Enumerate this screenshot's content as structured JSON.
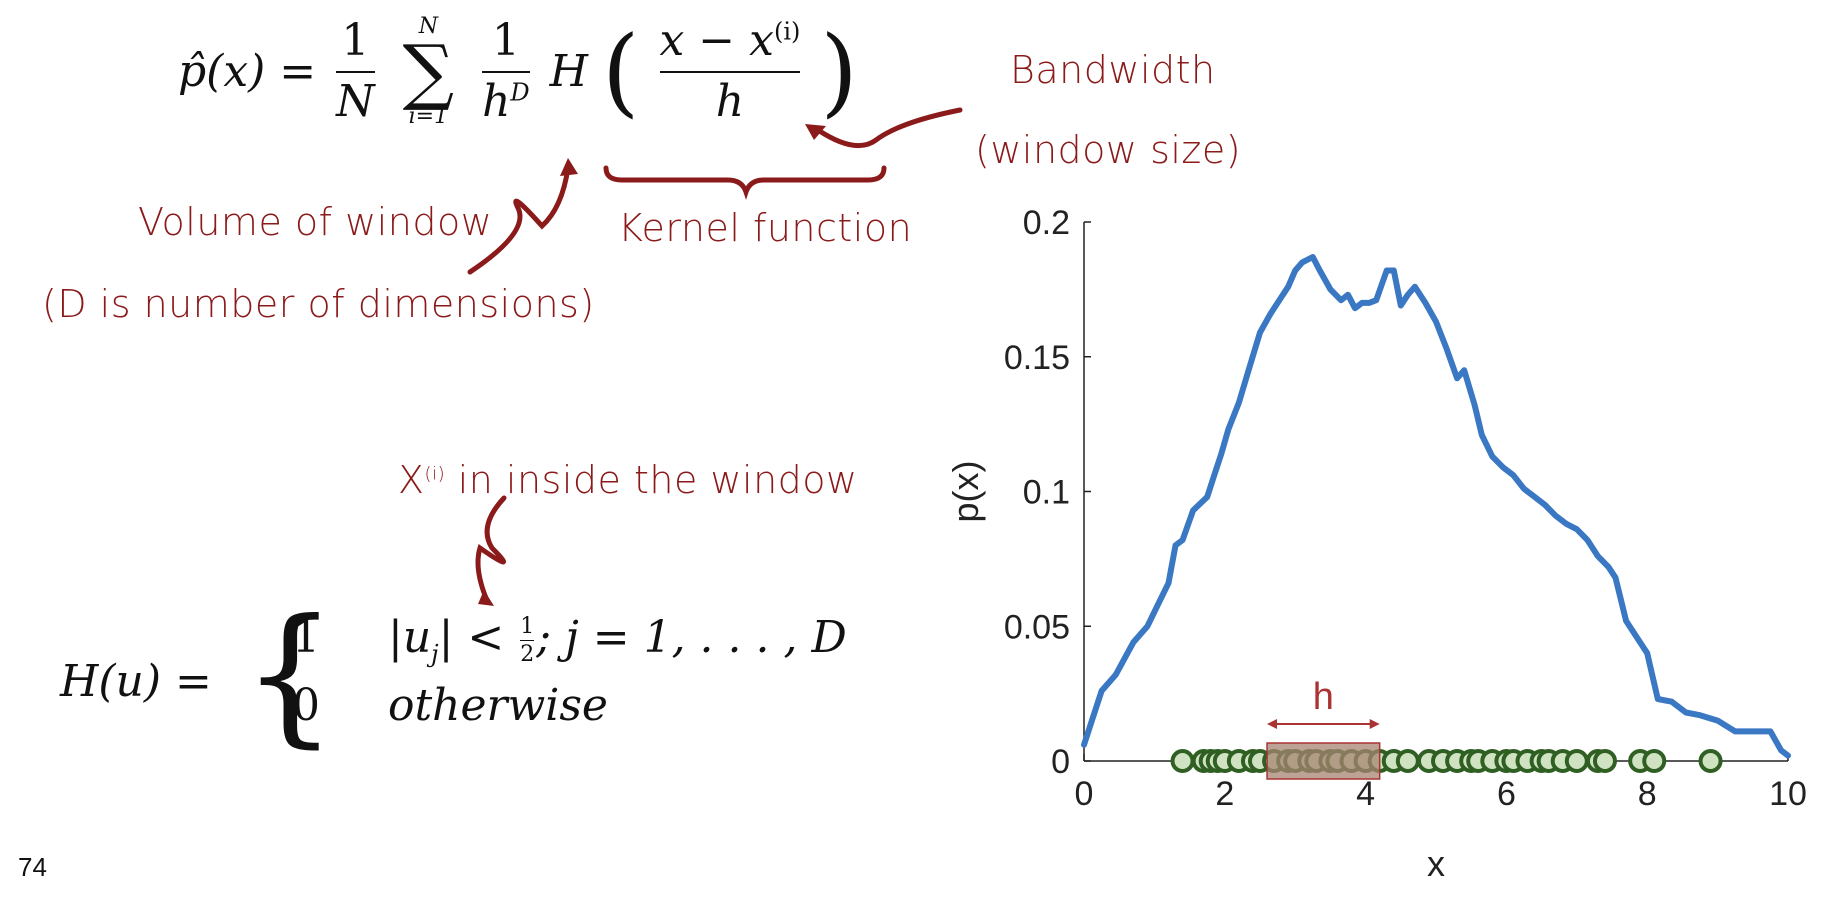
{
  "slide": {
    "page_number": "74",
    "colors": {
      "annotation": "#8b1a1a",
      "curve": "#3a78c3",
      "point_edge": "#2f5f22",
      "point_fill": "#cfe3c2",
      "window_fill": "#a78471"
    }
  },
  "formula_pdf": {
    "lhs": "p̂(x) =",
    "frac1_num": "1",
    "frac1_den": "N",
    "sum_symbol": "∑",
    "sum_top": "N",
    "sum_bottom": "i=1",
    "frac2_num": "1",
    "frac2_den": "h",
    "frac2_den_sup": "D",
    "kernel": "H",
    "frac3_num": "x − x",
    "frac3_num_sup": "(i)",
    "frac3_den": "h"
  },
  "formula_kernel": {
    "lhs": "H(u) =",
    "case1_value": "1",
    "case1_cond": "|u",
    "case1_sub": "j",
    "case1_rest": "| < ",
    "case1_half_num": "1",
    "case1_half_den": "2",
    "case1_tail": "; j = 1, . . . , D",
    "case2_value": "0",
    "case2_cond": "otherwise"
  },
  "annotations": {
    "bandwidth": "Bandwidth",
    "window_size": "(window size)",
    "volume": "Volume of window",
    "dimensions": "(D is number of dimensions)",
    "kernel_function": "Kernel function",
    "inside_prefix": "X",
    "inside_sup": "(i)",
    "inside_text": "in inside the window"
  },
  "chart_data": {
    "type": "line",
    "xlabel": "x",
    "ylabel": "p(x)",
    "xlim": [
      0,
      10
    ],
    "ylim": [
      0,
      0.2
    ],
    "xticks": [
      0,
      2,
      4,
      6,
      8,
      10
    ],
    "yticks": [
      0,
      0.05,
      0.1,
      0.15,
      0.2
    ],
    "ytick_labels": [
      "0",
      "0.05",
      "0.1",
      "0.15",
      "0.2"
    ],
    "grid": false,
    "series": [
      {
        "x": [
          0,
          0.1,
          0.25,
          0.45,
          0.7,
          0.9,
          1.05,
          1.2,
          1.3,
          1.4,
          1.55,
          1.75,
          1.85,
          1.95,
          2.05,
          2.2,
          2.35,
          2.5,
          2.65,
          2.75,
          2.9,
          3.0,
          3.1,
          3.25,
          3.35,
          3.5,
          3.65,
          3.75,
          3.85,
          3.95,
          4.05,
          4.15,
          4.3,
          4.4,
          4.5,
          4.6,
          4.7,
          4.85,
          5.0,
          5.15,
          5.3,
          5.4,
          5.55,
          5.65,
          5.8,
          5.95,
          6.1,
          6.25,
          6.4,
          6.55,
          6.7,
          6.85,
          7.0,
          7.15,
          7.3,
          7.45,
          7.55,
          7.7,
          7.85,
          8.0,
          8.15,
          8.35,
          8.55,
          8.75,
          9.0,
          9.25,
          9.5,
          9.75,
          9.9,
          10.0
        ],
        "y": [
          0.006,
          0.014,
          0.026,
          0.032,
          0.044,
          0.05,
          0.058,
          0.066,
          0.08,
          0.082,
          0.093,
          0.098,
          0.106,
          0.114,
          0.123,
          0.133,
          0.146,
          0.159,
          0.166,
          0.17,
          0.176,
          0.182,
          0.185,
          0.187,
          0.182,
          0.175,
          0.171,
          0.173,
          0.168,
          0.17,
          0.17,
          0.171,
          0.182,
          0.182,
          0.169,
          0.173,
          0.176,
          0.17,
          0.163,
          0.153,
          0.142,
          0.145,
          0.132,
          0.121,
          0.113,
          0.109,
          0.106,
          0.101,
          0.098,
          0.095,
          0.091,
          0.088,
          0.086,
          0.082,
          0.076,
          0.072,
          0.068,
          0.052,
          0.046,
          0.04,
          0.023,
          0.022,
          0.018,
          0.017,
          0.015,
          0.011,
          0.011,
          0.011,
          0.004,
          0.002
        ]
      }
    ],
    "samples_x": [
      1.4,
      1.7,
      1.8,
      1.9,
      2.0,
      2.2,
      2.4,
      2.5,
      2.7,
      2.9,
      3.0,
      3.2,
      3.3,
      3.5,
      3.6,
      3.8,
      4.0,
      4.2,
      4.4,
      4.6,
      4.9,
      5.1,
      5.3,
      5.5,
      5.6,
      5.8,
      6.0,
      6.1,
      6.3,
      6.5,
      6.6,
      6.8,
      7.0,
      7.3,
      7.4,
      7.9,
      8.1,
      8.9
    ],
    "window": {
      "x_start": 2.6,
      "x_end": 4.2,
      "label": "h"
    }
  }
}
